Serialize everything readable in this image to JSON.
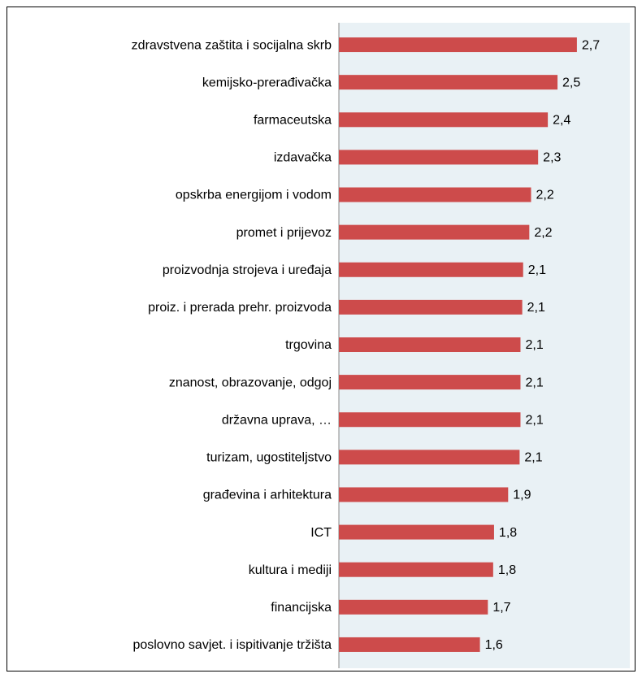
{
  "chart_data": {
    "type": "barh",
    "categories": [
      "zdravstvena zaštita i socijalna skrb",
      "kemijsko-prerađivačka",
      "farmaceutska",
      "izdavačka",
      "opskrba energijom i vodom",
      "promet i prijevoz",
      "proizvodnja strojeva i uređaja",
      "proiz. i prerada prehr. proizvoda",
      "trgovina",
      "znanost, obrazovanje, odgoj",
      "državna uprava, …",
      "turizam, ugostiteljstvo",
      "građevina i arhitektura",
      "ICT",
      "kultura i mediji",
      "financijska",
      "poslovno savjet. i ispitivanje tržišta"
    ],
    "values": [
      2.7,
      2.48,
      2.37,
      2.26,
      2.18,
      2.16,
      2.09,
      2.08,
      2.06,
      2.06,
      2.06,
      2.05,
      1.92,
      1.76,
      1.75,
      1.69,
      1.6
    ],
    "value_labels": [
      "2,7",
      "2,5",
      "2,4",
      "2,3",
      "2,2",
      "2,2",
      "2,1",
      "2,1",
      "2,1",
      "2,1",
      "2,1",
      "2,1",
      "1,9",
      "1,8",
      "1,8",
      "1,7",
      "1,6"
    ],
    "color": "#cd4b4b",
    "xlim": [
      0,
      3.3
    ]
  }
}
